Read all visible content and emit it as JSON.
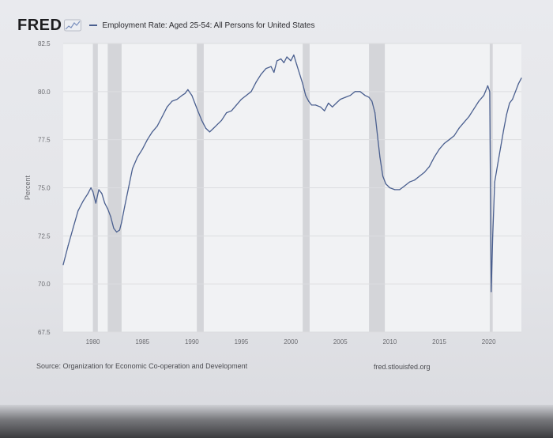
{
  "header": {
    "logo_text": "FRED",
    "logo_icon": "chart-line-icon",
    "series_title": "Employment Rate: Aged 25-54: All Persons for United States"
  },
  "footer": {
    "source": "Source: Organization for Economic Co-operation and Development",
    "credit": "fred.stlouisfed.org"
  },
  "colors": {
    "line": "#4a5f8f",
    "recession": "#d4d5d9",
    "plot_bg": "#f1f2f4",
    "grid": "#dcdde0"
  },
  "chart_data": {
    "type": "line",
    "title": "",
    "xlabel": "",
    "ylabel": "Percent",
    "xlim": [
      1977.0,
      2023.3
    ],
    "ylim": [
      67.5,
      82.5
    ],
    "yticks": [
      "67.5",
      "70.0",
      "72.5",
      "75.0",
      "77.5",
      "80.0",
      "82.5"
    ],
    "xticks": [
      "1980",
      "1985",
      "1990",
      "1995",
      "2000",
      "2005",
      "2010",
      "2015",
      "2020"
    ],
    "grid": "horizontal",
    "recessions": [
      [
        1980.0,
        1980.5
      ],
      [
        1981.5,
        1982.9
      ],
      [
        1990.5,
        1991.2
      ],
      [
        2001.2,
        2001.9
      ],
      [
        2007.9,
        2009.5
      ],
      [
        2020.1,
        2020.4
      ]
    ],
    "series": [
      {
        "values_desc": "",
        "x": [
          1977.0,
          1977.5,
          1978.0,
          1978.5,
          1979.0,
          1979.5,
          1979.8,
          1980.0,
          1980.3,
          1980.6,
          1980.9,
          1981.2,
          1981.5,
          1981.8,
          1982.1,
          1982.4,
          1982.7,
          1982.9,
          1983.2,
          1983.6,
          1984.0,
          1984.5,
          1985.0,
          1985.5,
          1986.0,
          1986.5,
          1987.0,
          1987.5,
          1988.0,
          1988.5,
          1989.0,
          1989.3,
          1989.6,
          1990.0,
          1990.3,
          1990.6,
          1991.0,
          1991.4,
          1991.8,
          1992.2,
          1992.6,
          1993.0,
          1993.5,
          1994.0,
          1994.5,
          1995.0,
          1995.5,
          1996.0,
          1996.5,
          1997.0,
          1997.5,
          1998.0,
          1998.3,
          1998.6,
          1999.0,
          1999.3,
          1999.6,
          2000.0,
          2000.3,
          2000.6,
          2000.9,
          2001.2,
          2001.5,
          2001.8,
          2002.1,
          2002.5,
          2003.0,
          2003.4,
          2003.8,
          2004.2,
          2004.6,
          2005.0,
          2005.5,
          2006.0,
          2006.5,
          2007.0,
          2007.5,
          2007.9,
          2008.2,
          2008.5,
          2008.8,
          2009.0,
          2009.3,
          2009.6,
          2010.0,
          2010.5,
          2011.0,
          2011.5,
          2012.0,
          2012.5,
          2013.0,
          2013.5,
          2014.0,
          2014.5,
          2015.0,
          2015.5,
          2016.0,
          2016.5,
          2017.0,
          2017.5,
          2018.0,
          2018.5,
          2019.0,
          2019.5,
          2019.9,
          2020.1,
          2020.25,
          2020.4,
          2020.6,
          2020.9,
          2021.2,
          2021.5,
          2021.8,
          2022.1,
          2022.4,
          2022.7,
          2023.0,
          2023.3
        ],
        "y": [
          71.0,
          72.0,
          72.9,
          73.8,
          74.3,
          74.7,
          75.0,
          74.8,
          74.2,
          74.9,
          74.7,
          74.2,
          73.9,
          73.5,
          72.9,
          72.7,
          72.8,
          73.2,
          74.0,
          75.0,
          76.0,
          76.6,
          77.0,
          77.5,
          77.9,
          78.2,
          78.7,
          79.2,
          79.5,
          79.6,
          79.8,
          79.9,
          80.1,
          79.8,
          79.4,
          79.0,
          78.5,
          78.1,
          77.9,
          78.1,
          78.3,
          78.5,
          78.9,
          79.0,
          79.3,
          79.6,
          79.8,
          80.0,
          80.5,
          80.9,
          81.2,
          81.3,
          81.0,
          81.6,
          81.7,
          81.5,
          81.8,
          81.6,
          81.9,
          81.4,
          80.9,
          80.4,
          79.8,
          79.5,
          79.3,
          79.3,
          79.2,
          79.0,
          79.4,
          79.2,
          79.4,
          79.6,
          79.7,
          79.8,
          80.0,
          80.0,
          79.8,
          79.7,
          79.5,
          78.9,
          77.5,
          76.6,
          75.6,
          75.2,
          75.0,
          74.9,
          74.9,
          75.1,
          75.3,
          75.4,
          75.6,
          75.8,
          76.1,
          76.6,
          77.0,
          77.3,
          77.5,
          77.7,
          78.1,
          78.4,
          78.7,
          79.1,
          79.5,
          79.8,
          80.3,
          80.0,
          69.6,
          72.5,
          75.3,
          76.2,
          77.1,
          78.0,
          78.8,
          79.4,
          79.6,
          80.0,
          80.4,
          80.7
        ]
      }
    ]
  }
}
